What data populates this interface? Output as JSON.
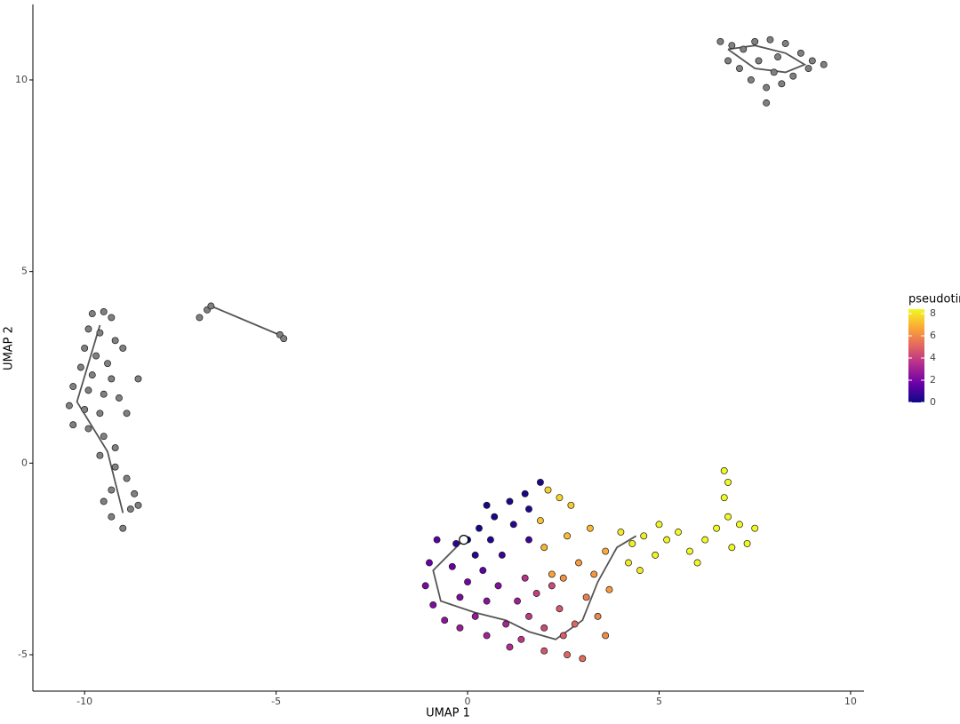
{
  "chart_data": {
    "type": "scatter",
    "xlabel": "UMAP 1",
    "ylabel": "UMAP 2",
    "xlim": [
      -11.35,
      10.35
    ],
    "ylim": [
      -5.95,
      11.97
    ],
    "xticks": [
      -10,
      -5,
      0,
      5,
      10
    ],
    "yticks": [
      -5,
      0,
      5,
      10
    ],
    "grid": false,
    "na_color": "#808080",
    "colorscale": [
      "#0d0887",
      "#6a00a8",
      "#b12a90",
      "#e16462",
      "#fca636",
      "#f0f921"
    ],
    "colorbar": {
      "title": "pseudotime",
      "clim": [
        0,
        8.4
      ],
      "ticks": [
        0,
        2,
        4,
        6,
        8
      ]
    },
    "x": [
      -9.8,
      -9.5,
      -9.3,
      -9.9,
      -9.6,
      -9.2,
      -9.0,
      -10.0,
      -9.7,
      -9.4,
      -10.1,
      -9.8,
      -9.3,
      -8.6,
      -10.3,
      -9.9,
      -9.5,
      -9.1,
      -10.4,
      -10.0,
      -9.6,
      -8.9,
      -10.3,
      -9.9,
      -9.5,
      -9.2,
      -9.6,
      -9.2,
      -8.9,
      -9.3,
      -8.7,
      -9.5,
      -8.8,
      -9.3,
      -9.0,
      -8.6,
      -7.0,
      -6.8,
      -6.7,
      -4.9,
      -4.8,
      6.6,
      6.9,
      7.2,
      7.5,
      7.9,
      8.3,
      8.7,
      9.0,
      9.3,
      8.9,
      8.5,
      8.2,
      7.8,
      7.4,
      7.1,
      6.8,
      7.6,
      8.1,
      7.8,
      8.0,
      1.9,
      1.5,
      1.1,
      0.7,
      0.3,
      0.0,
      0.6,
      1.2,
      1.6,
      0.2,
      0.9,
      -0.3,
      1.6,
      0.5,
      -0.8,
      -1.0,
      -1.1,
      -0.9,
      -0.6,
      -0.2,
      0.2,
      0.5,
      0.0,
      -0.4,
      0.4,
      0.8,
      1.0,
      0.5,
      -0.2,
      1.3,
      1.5,
      1.8,
      2.2,
      1.6,
      2.0,
      2.5,
      1.4,
      2.0,
      2.6,
      3.0,
      1.1,
      2.4,
      2.8,
      3.1,
      3.4,
      3.6,
      2.5,
      2.2,
      2.9,
      3.3,
      2.0,
      2.6,
      3.2,
      3.6,
      1.9,
      2.1,
      2.4,
      2.7,
      3.7,
      4.0,
      4.3,
      4.6,
      4.2,
      4.9,
      5.2,
      5.5,
      5.8,
      6.0,
      6.2,
      6.5,
      6.8,
      7.1,
      7.3,
      6.9,
      7.5,
      6.7,
      6.8,
      6.7,
      4.5,
      5.0
    ],
    "y": [
      3.9,
      3.95,
      3.8,
      3.5,
      3.4,
      3.2,
      3.0,
      3.0,
      2.8,
      2.6,
      2.5,
      2.3,
      2.2,
      2.2,
      2.0,
      1.9,
      1.8,
      1.7,
      1.5,
      1.4,
      1.3,
      1.3,
      1.0,
      0.9,
      0.7,
      0.4,
      0.2,
      -0.1,
      -0.4,
      -0.7,
      -0.8,
      -1.0,
      -1.2,
      -1.4,
      -1.7,
      -1.1,
      3.8,
      4.0,
      4.1,
      3.35,
      3.25,
      11.0,
      10.9,
      10.8,
      11.0,
      11.05,
      10.95,
      10.7,
      10.5,
      10.4,
      10.3,
      10.1,
      9.9,
      9.8,
      10.0,
      10.3,
      10.5,
      10.5,
      10.6,
      9.4,
      10.2,
      -0.5,
      -0.8,
      -1.0,
      -1.4,
      -1.7,
      -2.0,
      -2.0,
      -1.6,
      -1.2,
      -2.4,
      -2.4,
      -2.1,
      -2.0,
      -1.1,
      -2.0,
      -2.6,
      -3.2,
      -3.7,
      -4.1,
      -4.3,
      -4.0,
      -3.6,
      -3.1,
      -2.7,
      -2.8,
      -3.2,
      -4.2,
      -4.5,
      -3.5,
      -3.6,
      -3.0,
      -3.4,
      -3.2,
      -4.0,
      -4.3,
      -4.5,
      -4.6,
      -4.9,
      -5.0,
      -5.1,
      -4.8,
      -3.8,
      -4.2,
      -3.5,
      -4.0,
      -4.5,
      -3.0,
      -2.9,
      -2.6,
      -2.9,
      -2.2,
      -1.9,
      -1.7,
      -2.3,
      -1.5,
      -0.7,
      -0.9,
      -1.1,
      -3.3,
      -1.8,
      -2.1,
      -1.9,
      -2.6,
      -2.4,
      -2.0,
      -1.8,
      -2.3,
      -2.6,
      -2.0,
      -1.7,
      -1.4,
      -1.6,
      -2.1,
      -2.2,
      -1.7,
      -0.2,
      -0.5,
      -0.9,
      -2.8,
      -1.6
    ],
    "pseudotime": [
      null,
      null,
      null,
      null,
      null,
      null,
      null,
      null,
      null,
      null,
      null,
      null,
      null,
      null,
      null,
      null,
      null,
      null,
      null,
      null,
      null,
      null,
      null,
      null,
      null,
      null,
      null,
      null,
      null,
      null,
      null,
      null,
      null,
      null,
      null,
      null,
      null,
      null,
      null,
      null,
      null,
      null,
      null,
      null,
      null,
      null,
      null,
      null,
      null,
      null,
      null,
      null,
      null,
      null,
      null,
      null,
      null,
      null,
      null,
      null,
      null,
      0.3,
      0.2,
      0.3,
      0.2,
      0.1,
      0.0,
      0.4,
      0.5,
      0.4,
      0.5,
      0.8,
      0.6,
      0.9,
      0.2,
      1.4,
      1.7,
      2.0,
      2.2,
      2.5,
      2.8,
      2.7,
      2.4,
      1.9,
      1.6,
      1.5,
      2.3,
      3.1,
      3.0,
      2.1,
      2.9,
      3.6,
      4.0,
      4.3,
      3.8,
      4.3,
      4.8,
      3.7,
      4.6,
      5.0,
      5.2,
      3.4,
      4.7,
      5.1,
      5.7,
      5.9,
      6.0,
      6.2,
      6.6,
      6.5,
      6.3,
      7.0,
      7.2,
      7.1,
      6.8,
      7.3,
      7.6,
      7.7,
      7.5,
      6.4,
      8.1,
      8.2,
      8.2,
      8.1,
      8.3,
      8.3,
      8.4,
      8.4,
      8.4,
      8.4,
      8.4,
      8.4,
      8.4,
      8.4,
      8.4,
      8.4,
      8.4,
      8.4,
      8.4,
      8.1,
      8.3
    ],
    "trajectory": {
      "color": "#555555",
      "x": [
        -6.7,
        -4.8,
        null,
        -9.6,
        -10.2,
        -9.4,
        -9.0,
        null,
        -0.1,
        -0.9,
        -0.7,
        0.2,
        1.0,
        1.6,
        2.3,
        3.0,
        3.4,
        3.9,
        4.4,
        null,
        6.8,
        7.5,
        8.3,
        8.8,
        8.3,
        7.5,
        6.8
      ],
      "y": [
        4.1,
        3.3,
        null,
        3.6,
        1.6,
        0.3,
        -1.3,
        null,
        -2.0,
        -2.8,
        -3.6,
        -3.9,
        -4.1,
        -4.4,
        -4.6,
        -4.1,
        -3.1,
        -2.2,
        -1.9,
        null,
        10.8,
        10.9,
        10.7,
        10.4,
        10.2,
        10.3,
        10.8
      ]
    }
  }
}
